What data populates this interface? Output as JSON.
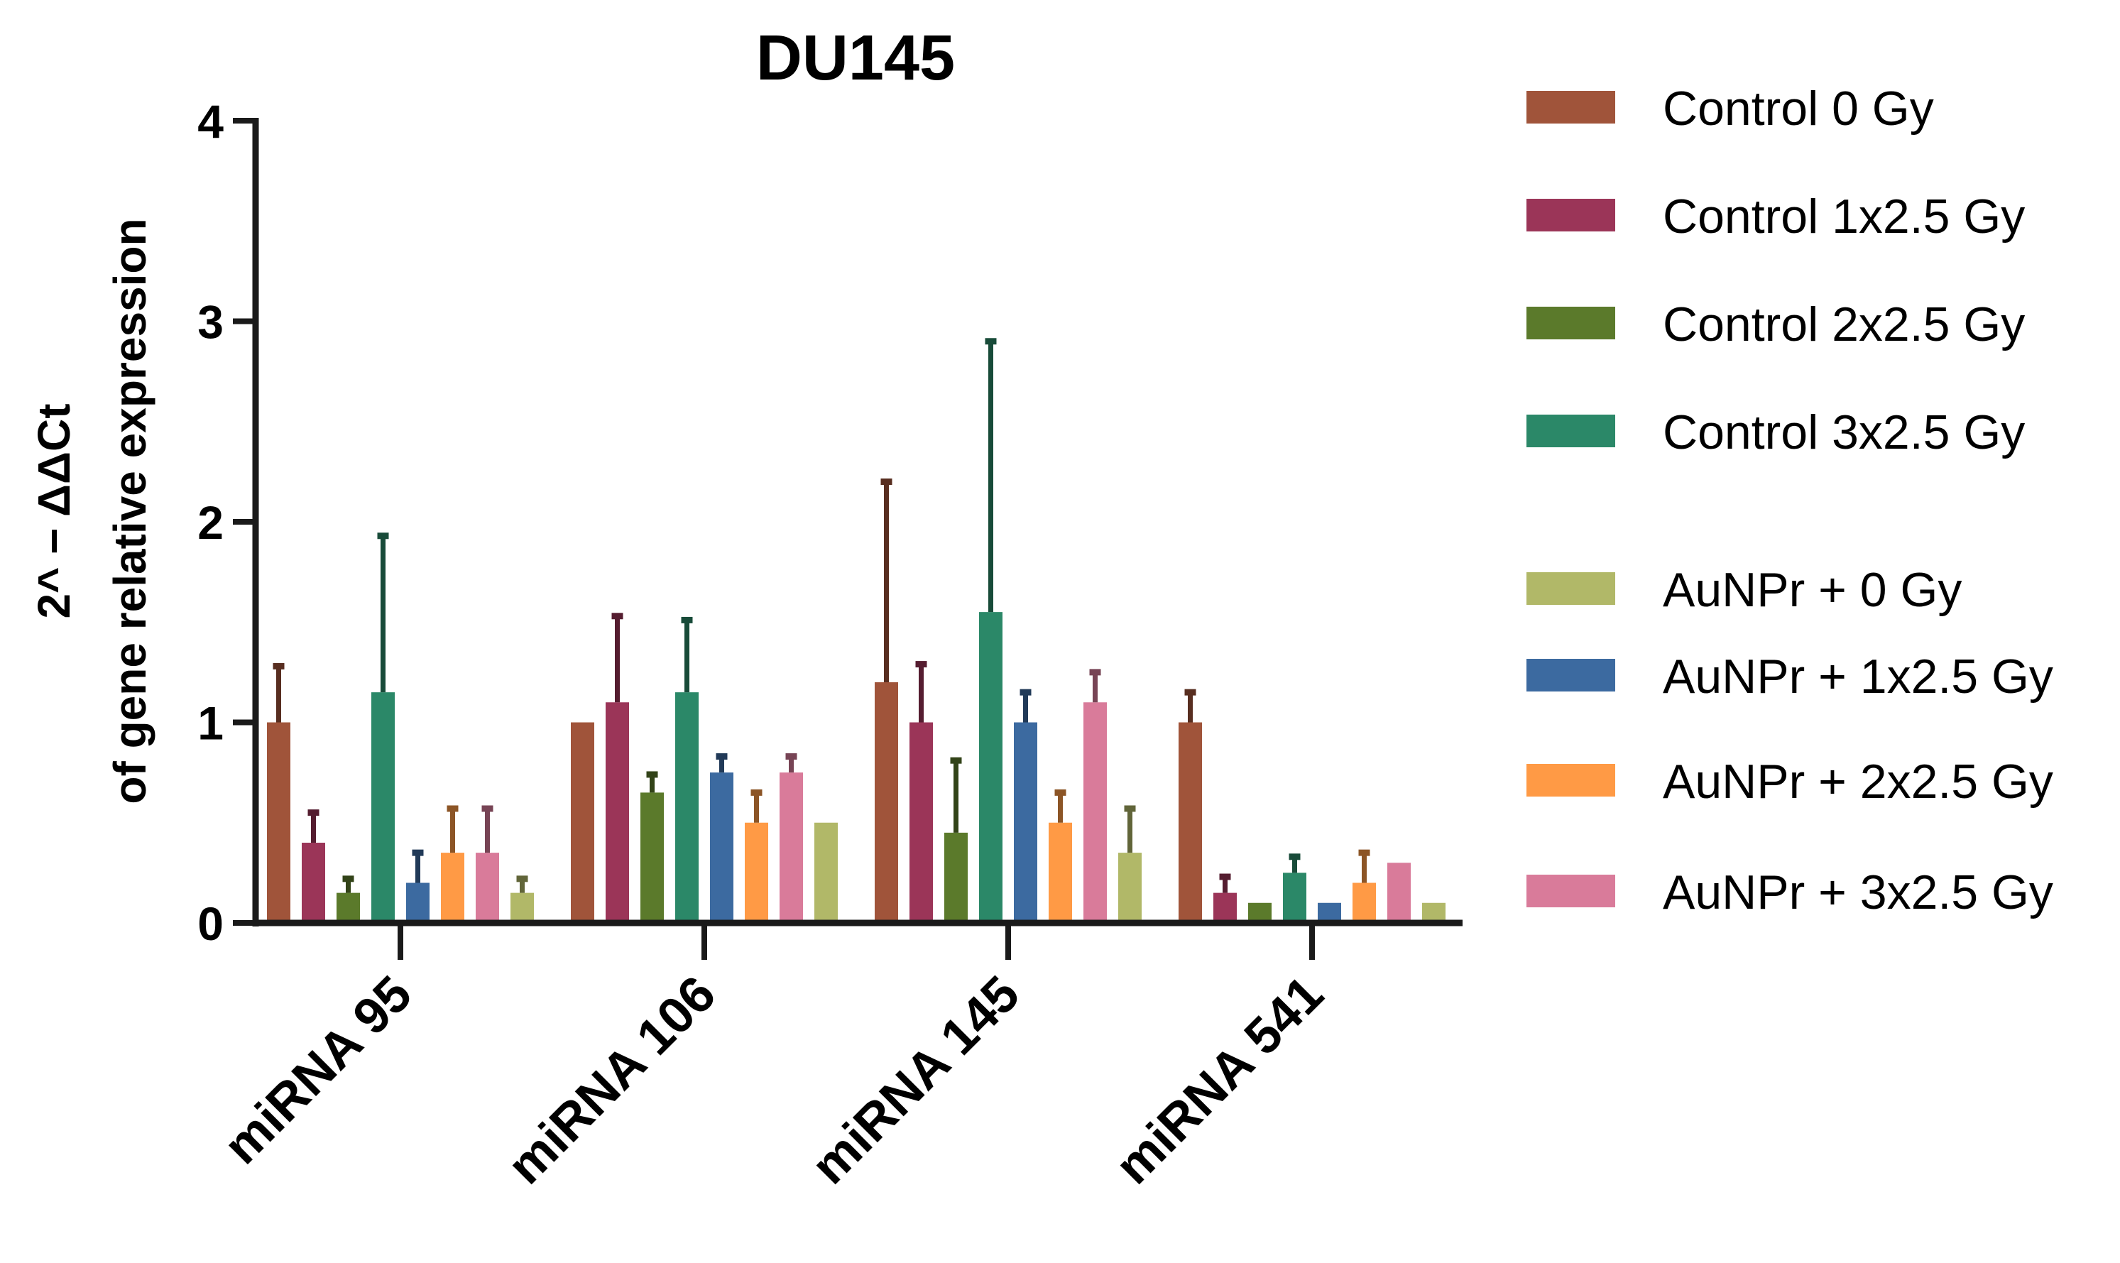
{
  "chart_data": {
    "type": "bar",
    "title": "DU145",
    "ylabel_line1": "2^ − ΔΔCt",
    "ylabel_line2": "of gene relative expression",
    "xlabel": "",
    "ylim": [
      0,
      4
    ],
    "yticks": [
      "0",
      "1",
      "2",
      "3",
      "4"
    ],
    "grid": false,
    "legend_position": "right",
    "categories": [
      "miRNA 95",
      "miRNA 106",
      "miRNA 145",
      "miRNA 541"
    ],
    "series": [
      {
        "name": "Control 0 Gy",
        "color": "#A0543A",
        "values": [
          1.0,
          1.0,
          1.2,
          1.0
        ],
        "errors": [
          0.28,
          0.0,
          1.0,
          0.15
        ]
      },
      {
        "name": "Control 1x2.5 Gy",
        "color": "#9B3558",
        "values": [
          0.4,
          1.1,
          1.0,
          0.15
        ],
        "errors": [
          0.15,
          0.43,
          0.29,
          0.08
        ]
      },
      {
        "name": "Control 2x2.5 Gy",
        "color": "#5B7A2B",
        "values": [
          0.15,
          0.65,
          0.45,
          0.1
        ],
        "errors": [
          0.07,
          0.09,
          0.36,
          0.0
        ]
      },
      {
        "name": "Control 3x2.5 Gy",
        "color": "#2B8868",
        "values": [
          1.15,
          1.15,
          1.55,
          0.25
        ],
        "errors": [
          0.78,
          0.36,
          1.35,
          0.08
        ]
      },
      {
        "name": "AuNPr + 1x2.5 Gy",
        "color": "#3C6AA0",
        "values": [
          0.2,
          0.75,
          1.0,
          0.1
        ],
        "errors": [
          0.15,
          0.08,
          0.15,
          0.0
        ]
      },
      {
        "name": "AuNPr + 2x2.5 Gy",
        "color": "#FF9A45",
        "values": [
          0.35,
          0.5,
          0.5,
          0.2
        ],
        "errors": [
          0.22,
          0.15,
          0.15,
          0.15
        ]
      },
      {
        "name": "AuNPr + 3x2.5 Gy",
        "color": "#D97B9A",
        "values": [
          0.35,
          0.75,
          1.1,
          0.3
        ],
        "errors": [
          0.22,
          0.08,
          0.15,
          0.0
        ]
      },
      {
        "name": "AuNPr + 0 Gy",
        "color": "#B1B868",
        "values": [
          0.15,
          0.5,
          0.35,
          0.1
        ],
        "errors": [
          0.07,
          0.0,
          0.22,
          0.0
        ]
      }
    ],
    "legend_order": [
      "Control 0 Gy",
      "Control 1x2.5 Gy",
      "Control 2x2.5 Gy",
      "Control 3x2.5 Gy",
      "AuNPr + 0 Gy",
      "AuNPr + 1x2.5 Gy",
      "AuNPr + 2x2.5 Gy",
      "AuNPr + 3x2.5 Gy"
    ]
  }
}
